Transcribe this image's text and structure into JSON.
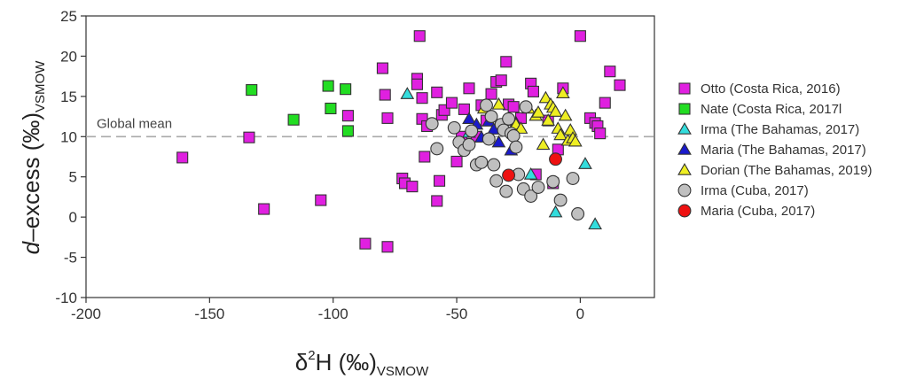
{
  "chart_data": {
    "type": "scatter",
    "xlabel_main": "δ",
    "xlabel_sup": "2",
    "xlabel_rest": "H (‰)",
    "xlabel_sub": "VSMOW",
    "ylabel_italic": "d",
    "ylabel_rest": "–excess (‰)",
    "ylabel_sub": "VSMOW",
    "xlim": [
      -200,
      30
    ],
    "ylim": [
      -10,
      25
    ],
    "xticks": [
      -200,
      -150,
      -100,
      -50,
      0
    ],
    "yticks": [
      -10,
      -5,
      0,
      5,
      10,
      15,
      20,
      25
    ],
    "reference_line": {
      "y": 10,
      "label": "Global mean",
      "style": "dashed",
      "color": "#aaaaaa"
    },
    "series": [
      {
        "name": "Otto (Costa Rica, 2016)",
        "marker": "square",
        "color": "#e020e0",
        "x": [
          -65,
          0,
          -161,
          -134,
          -128,
          -105,
          -94,
          -87,
          -80,
          -79,
          -78,
          -78,
          -72,
          -71,
          -68,
          -66,
          -66,
          -64,
          -64,
          -63,
          -62,
          -58,
          -58,
          -57,
          -56,
          -55,
          -52,
          -50,
          -48,
          -47,
          -45,
          -42,
          -40,
          -38,
          -36,
          -34,
          -32,
          -30,
          -29,
          -27,
          -24,
          -20,
          -19,
          -18,
          -13,
          -11,
          -9,
          -7,
          4,
          6,
          7,
          8,
          10,
          12,
          16
        ],
        "y": [
          22.5,
          22.5,
          7.4,
          9.9,
          1.0,
          2.1,
          12.6,
          -3.3,
          18.5,
          15.2,
          12.3,
          -3.7,
          4.8,
          4.2,
          3.8,
          17.2,
          16.5,
          14.8,
          12.2,
          7.5,
          11.3,
          15.5,
          2.0,
          4.5,
          12.7,
          13.3,
          14.2,
          6.9,
          10.0,
          13.4,
          16.0,
          10.0,
          13.9,
          12.0,
          15.3,
          16.8,
          17.0,
          19.3,
          14.0,
          13.7,
          12.3,
          16.6,
          15.6,
          5.3,
          12.0,
          4.2,
          8.4,
          16.0,
          12.3,
          11.7,
          11.3,
          10.4,
          14.2,
          18.1,
          16.4
        ]
      },
      {
        "name": "Nate (Costa Rica, 2017l",
        "marker": "square",
        "color": "#22dd22",
        "x": [
          -133,
          -116,
          -102,
          -101,
          -95,
          -94
        ],
        "y": [
          15.8,
          12.1,
          16.3,
          13.5,
          15.9,
          10.7
        ]
      },
      {
        "name": "Irma (The Bahamas, 2017)",
        "marker": "triangle-up",
        "color": "#33dddd",
        "x": [
          -70,
          -45,
          -20,
          -10,
          2,
          6
        ],
        "y": [
          15.3,
          10.5,
          5.3,
          0.6,
          6.6,
          -0.9
        ]
      },
      {
        "name": "Maria (The Bahamas, 2017)",
        "marker": "triangle-up",
        "color": "#1a1acc",
        "x": [
          -45,
          -42,
          -40,
          -37,
          -35,
          -33,
          -30,
          -28,
          -26
        ],
        "y": [
          12.2,
          11.5,
          9.9,
          11.9,
          10.9,
          9.3,
          12.1,
          8.3,
          11.7
        ]
      },
      {
        "name": "Dorian (The Bahamas, 2019)",
        "marker": "triangle-up",
        "color": "#eeee22",
        "x": [
          -39,
          -33,
          -28,
          -26,
          -24,
          -21,
          -18,
          -17,
          -15,
          -14,
          -13,
          -12,
          -11,
          -10,
          -9,
          -8,
          -7,
          -6,
          -5,
          -4,
          -3,
          -2
        ],
        "y": [
          13.5,
          14.0,
          12.0,
          11.5,
          11.0,
          13.5,
          12.6,
          13.0,
          9.0,
          14.8,
          12.0,
          14.0,
          13.6,
          13.1,
          11.0,
          10.2,
          15.4,
          12.6,
          9.5,
          10.8,
          9.8,
          9.4
        ]
      },
      {
        "name": "Irma (Cuba, 2017)",
        "marker": "circle",
        "color": "#c0c0c0",
        "x": [
          -60,
          -58,
          -51,
          -49,
          -47,
          -45,
          -44,
          -42,
          -40,
          -38,
          -37,
          -36,
          -35,
          -34,
          -32,
          -31,
          -30,
          -29,
          -28,
          -27,
          -26,
          -25,
          -23,
          -22,
          -20,
          -17,
          -11,
          -8,
          -3,
          -1
        ],
        "y": [
          11.6,
          8.5,
          11.1,
          9.3,
          8.3,
          9.0,
          10.7,
          6.5,
          6.8,
          13.9,
          9.7,
          12.5,
          6.5,
          4.5,
          11.5,
          10.8,
          3.2,
          12.2,
          10.4,
          10.1,
          8.7,
          5.3,
          3.5,
          13.7,
          2.6,
          3.7,
          4.4,
          2.1,
          4.8,
          0.4
        ]
      },
      {
        "name": "Maria (Cuba, 2017)",
        "marker": "circle",
        "color": "#ee1111",
        "x": [
          -29,
          -10
        ],
        "y": [
          5.2,
          7.2
        ]
      }
    ],
    "legend_position": "right",
    "grid": false
  }
}
